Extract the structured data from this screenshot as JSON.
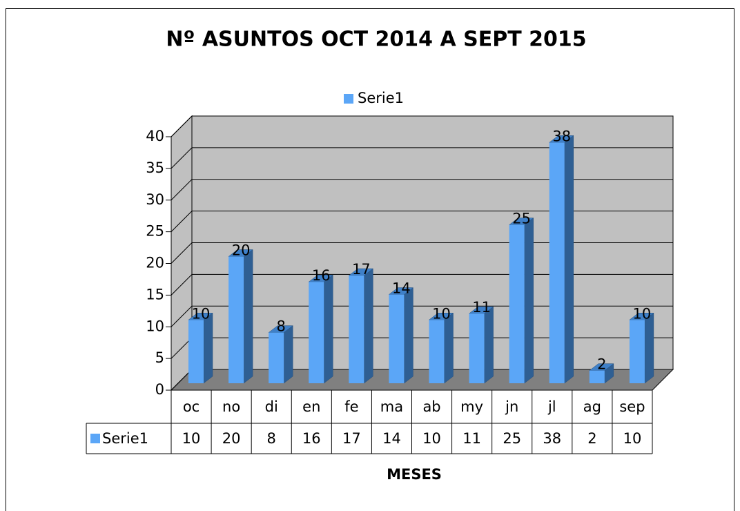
{
  "chart_data": {
    "type": "bar3d",
    "title": "Nº ASUNTOS OCT 2014 A SEPT 2015",
    "x_label": "MESES",
    "categories": [
      "oc",
      "no",
      "di",
      "en",
      "fe",
      "ma",
      "ab",
      "my",
      "jn",
      "jl",
      "ag",
      "sep"
    ],
    "series": [
      {
        "name": "Serie1",
        "color": "#5ba6f7",
        "values": [
          10,
          20,
          8,
          16,
          17,
          14,
          10,
          11,
          25,
          38,
          2,
          10
        ]
      }
    ],
    "ylim": [
      0,
      40
    ],
    "yticks": [
      0,
      5,
      10,
      15,
      20,
      25,
      30,
      35,
      40
    ],
    "grid": true,
    "legend": "top",
    "data_table": true
  }
}
